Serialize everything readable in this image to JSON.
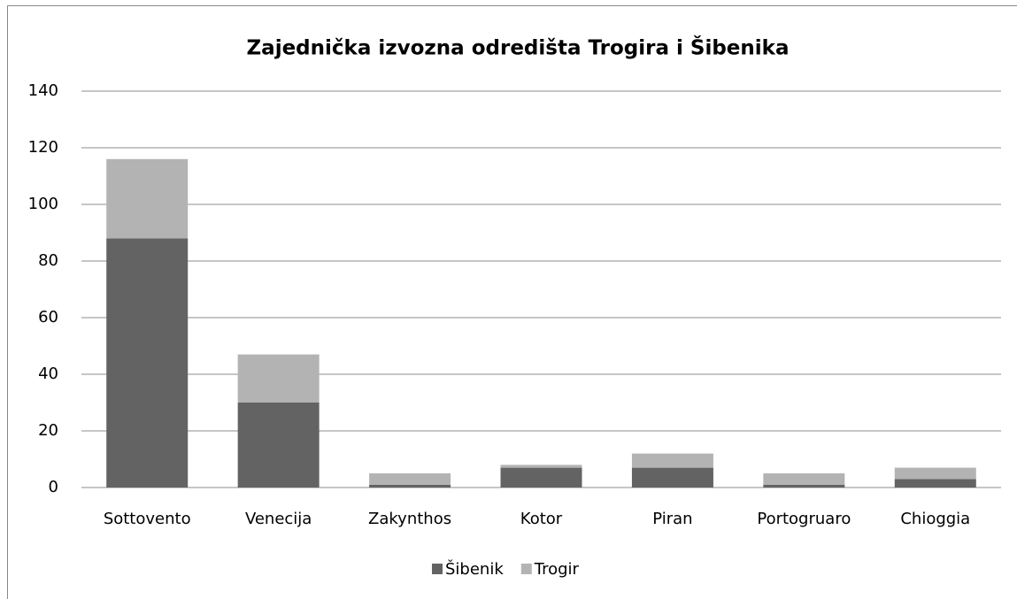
{
  "chart_data": {
    "type": "stacked_bar",
    "title": "Zajednička izvozna odredišta Trogira i Šibenika",
    "categories": [
      "Sottovento",
      "Venecija",
      "Zakynthos",
      "Kotor",
      "Piran",
      "Portogruaro",
      "Chioggia"
    ],
    "series": [
      {
        "name": "Šibenik",
        "color": "#636363",
        "values": [
          88,
          30,
          1,
          7,
          7,
          1,
          3
        ]
      },
      {
        "name": "Trogir",
        "color": "#b3b3b3",
        "values": [
          28,
          17,
          4,
          1,
          5,
          4,
          4
        ]
      }
    ],
    "ylim": [
      0,
      140
    ],
    "yticks": [
      0,
      20,
      40,
      60,
      80,
      100,
      120,
      140
    ],
    "grid": true,
    "legend": "bottom"
  }
}
